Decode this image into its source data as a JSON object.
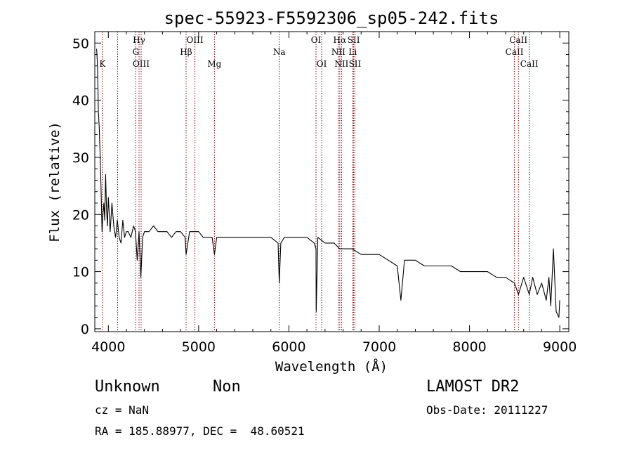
{
  "chart_data": {
    "type": "line",
    "title": "spec-55923-F5592306_sp05-242.fits",
    "xlabel": "Wavelength (Å)",
    "ylabel": "Flux (relative)",
    "xlim": [
      3850,
      9100
    ],
    "ylim": [
      -0.5,
      52
    ],
    "xticks": [
      4000,
      5000,
      6000,
      7000,
      8000,
      9000
    ],
    "yticks": [
      0,
      10,
      20,
      30,
      40,
      50
    ],
    "grid": false,
    "line_color": "#000000",
    "marker_color": "#8b0000",
    "series": [
      {
        "x": [
          3870,
          3880,
          3890,
          3900,
          3910,
          3920,
          3930,
          3940,
          3950,
          3960,
          3970,
          3980,
          3990,
          4000,
          4020,
          4040,
          4060,
          4080,
          4100,
          4120,
          4140,
          4160,
          4180,
          4200,
          4220,
          4250,
          4280,
          4300,
          4320,
          4340,
          4360,
          4380,
          4400,
          4450,
          4500,
          4550,
          4600,
          4650,
          4700,
          4750,
          4800,
          4850,
          4861,
          4900,
          4950,
          5000,
          5050,
          5100,
          5150,
          5175,
          5200,
          5250,
          5300,
          5400,
          5500,
          5600,
          5700,
          5800,
          5880,
          5893,
          5910,
          5950,
          6000,
          6100,
          6200,
          6280,
          6300,
          6302,
          6320,
          6400,
          6500,
          6563,
          6600,
          6700,
          6800,
          6900,
          7000,
          7100,
          7200,
          7240,
          7280,
          7350,
          7400,
          7500,
          7600,
          7700,
          7800,
          7900,
          8000,
          8100,
          8200,
          8300,
          8400,
          8498,
          8542,
          8600,
          8662,
          8700,
          8750,
          8800,
          8850,
          8880,
          8900,
          8930,
          8960,
          8990,
          9000
        ],
        "y": [
          49,
          46,
          38,
          35,
          30,
          24,
          17,
          20,
          22,
          19,
          27,
          21,
          18,
          23,
          17,
          22,
          18,
          16,
          19,
          16,
          15,
          19,
          16,
          17,
          17,
          16,
          18,
          17,
          12,
          17,
          9,
          16,
          17,
          17,
          18,
          17,
          17,
          17,
          16,
          17,
          17,
          16,
          13,
          17,
          17,
          17,
          16,
          16,
          16,
          13,
          16,
          16,
          16,
          16,
          16,
          16,
          16,
          16,
          15,
          8,
          15,
          16,
          16,
          16,
          16,
          15,
          14,
          3,
          16,
          15,
          15,
          14,
          14,
          14,
          13,
          13,
          13,
          12,
          11,
          5,
          12,
          12,
          12,
          11,
          11,
          11,
          11,
          10,
          10,
          10,
          10,
          9,
          9,
          8,
          6,
          9,
          6,
          9,
          6,
          8,
          5,
          9,
          4,
          14,
          3,
          2,
          5
        ]
      }
    ],
    "lines": [
      {
        "wavelength": 3934,
        "label": "K",
        "row": 3
      },
      {
        "wavelength": 4102,
        "label": "",
        "row": 0
      },
      {
        "wavelength": 4304,
        "label": "G",
        "row": 2
      },
      {
        "wavelength": 4340,
        "label": "Hγ",
        "row": 1
      },
      {
        "wavelength": 4363,
        "label": "OIII",
        "row": 3
      },
      {
        "wavelength": 4861,
        "label": "Hβ",
        "row": 2
      },
      {
        "wavelength": 4959,
        "label": "OIII",
        "row": 1
      },
      {
        "wavelength": 5175,
        "label": "Mg",
        "row": 3
      },
      {
        "wavelength": 5893,
        "label": "Na",
        "row": 2
      },
      {
        "wavelength": 6300,
        "label": "OI",
        "row": 1
      },
      {
        "wavelength": 6363,
        "label": "OI",
        "row": 3
      },
      {
        "wavelength": 6548,
        "label": "NII",
        "row": 2
      },
      {
        "wavelength": 6563,
        "label": "Hα",
        "row": 1
      },
      {
        "wavelength": 6583,
        "label": "NII",
        "row": 3
      },
      {
        "wavelength": 6707,
        "label": "Li",
        "row": 2
      },
      {
        "wavelength": 6717,
        "label": "SII",
        "row": 1
      },
      {
        "wavelength": 6731,
        "label": "SII",
        "row": 3
      },
      {
        "wavelength": 8498,
        "label": "CaII",
        "row": 2
      },
      {
        "wavelength": 8542,
        "label": "CaII",
        "row": 1
      },
      {
        "wavelength": 8662,
        "label": "CaII",
        "row": 3
      }
    ]
  },
  "info": {
    "class_label": "Unknown",
    "subclass_label": "Non",
    "survey_label": "LAMOST DR2",
    "cz_label": "cz = NaN",
    "obs_date_label": "Obs-Date: 20111227",
    "coords_label": "RA = 185.88977, DEC =  48.60521"
  }
}
